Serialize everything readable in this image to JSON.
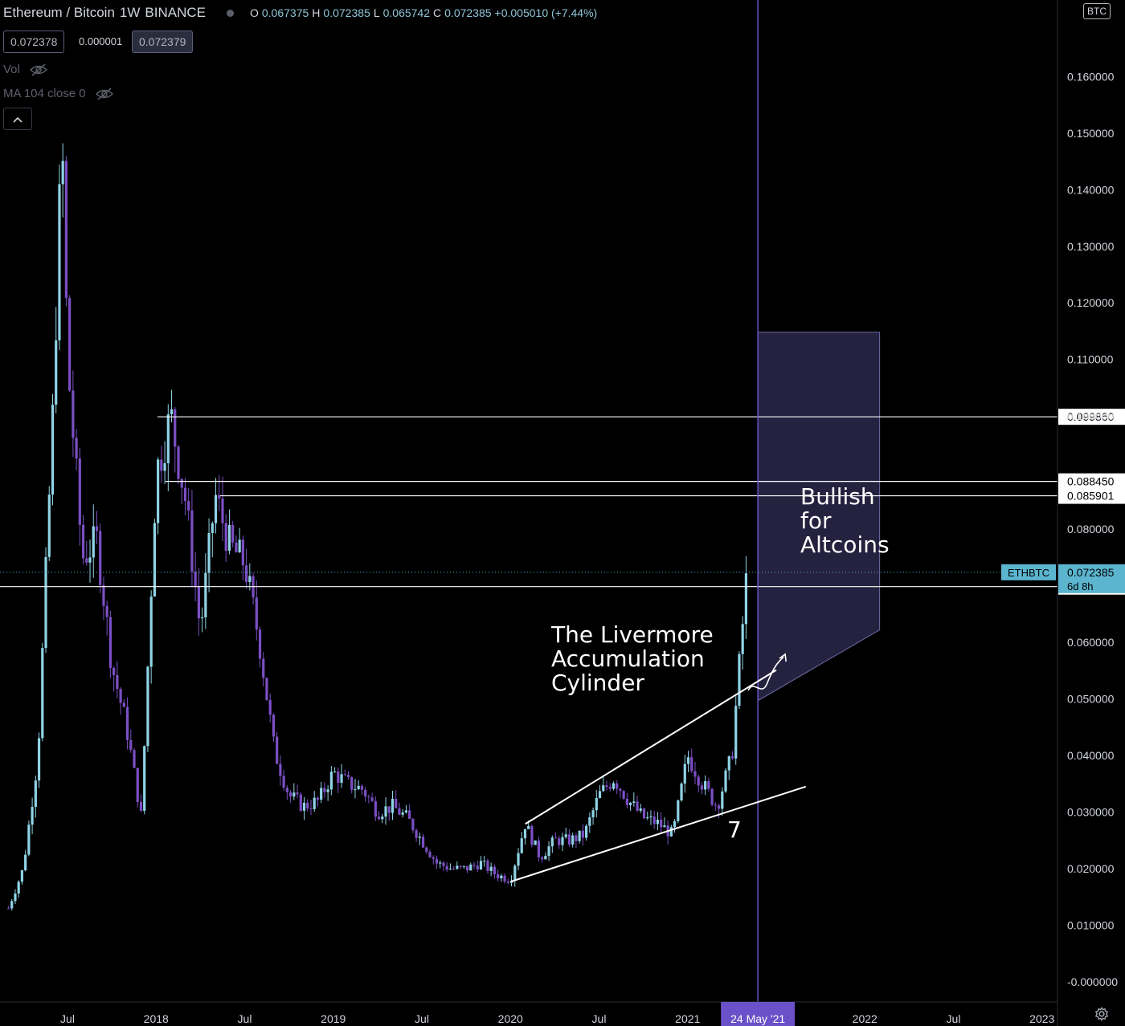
{
  "header": {
    "symbol": "Ethereum / Bitcoin",
    "interval": "1W",
    "exchange": "BINANCE",
    "ohlc": {
      "o_label": "O",
      "o": "0.067375",
      "h_label": "H",
      "h": "0.072385",
      "l_label": "L",
      "l": "0.065742",
      "c_label": "C",
      "c": "0.072385",
      "change": "+0.005010 (+7.44%)"
    },
    "bid": "0.072378",
    "spread": "0.000001",
    "ask": "0.072379"
  },
  "indicators": [
    {
      "label": "Vol"
    },
    {
      "label": "MA 104 close 0"
    }
  ],
  "currency_tag": "BTC",
  "colors": {
    "up": "#8fd3e6",
    "down": "#7b4fc4",
    "background": "#000000",
    "axis_text": "#d1d4dc",
    "box_fill": "#25223f",
    "box_stroke": "#6e6aa8",
    "cursor": "#6a51c9",
    "last_price_bg": "#5bb5cf"
  },
  "annotations": {
    "livermore": [
      "The Livermore",
      "Accumulation",
      "Cylinder"
    ],
    "bullish": [
      "Bullish",
      "for",
      "Altcoins"
    ],
    "seven": "7"
  },
  "chart_data": {
    "type": "candlestick",
    "title": "Ethereum / Bitcoin · 1W · BINANCE",
    "y_ticks": [
      "0.160000",
      "0.150000",
      "0.140000",
      "0.130000",
      "0.120000",
      "0.110000",
      "0.100000",
      "0.080000",
      "0.060000",
      "0.050000",
      "0.040000",
      "0.030000",
      "0.020000",
      "0.010000",
      "-0.000000"
    ],
    "x_ticks": [
      {
        "label": "Jul",
        "date": "2017-07"
      },
      {
        "label": "2018",
        "date": "2018-01"
      },
      {
        "label": "Jul",
        "date": "2018-07"
      },
      {
        "label": "2019",
        "date": "2019-01"
      },
      {
        "label": "Jul",
        "date": "2019-07"
      },
      {
        "label": "2020",
        "date": "2020-01"
      },
      {
        "label": "Jul",
        "date": "2020-07"
      },
      {
        "label": "2021",
        "date": "2021-01"
      },
      {
        "label": "2022",
        "date": "2022-01"
      },
      {
        "label": "Jul",
        "date": "2022-07"
      },
      {
        "label": "2023",
        "date": "2023-01"
      }
    ],
    "cursor_date_label": "24 May '21",
    "ylim": [
      0,
      0.16
    ],
    "xlim": [
      "2017-03",
      "2023-01"
    ],
    "horizontal_levels": [
      {
        "label": "0.099860",
        "value": 0.09986
      },
      {
        "label": "0.088450",
        "value": 0.08845
      },
      {
        "label": "0.085901",
        "value": 0.085901
      },
      {
        "label": "0.069848",
        "value": 0.069848
      }
    ],
    "last_price": {
      "symbol": "ETHBTC",
      "value": "0.072385",
      "countdown": "6d 8h"
    },
    "trendlines": [
      {
        "from": [
          "2020-01",
          "0.0177"
        ],
        "to": [
          "2021-09",
          "0.0345"
        ]
      },
      {
        "from": [
          "2020-02",
          "0.0279"
        ],
        "to": [
          "2021-07",
          "0.0551"
        ]
      }
    ],
    "target_box": {
      "date_start": "2021-05",
      "date_end": "2022-02",
      "top": 0.1148,
      "bottom_start": 0.0497,
      "bottom_end": 0.0622
    },
    "series_path": [
      [
        "2017-03",
        0.013
      ],
      [
        "2017-04",
        0.02
      ],
      [
        "2017-05",
        0.04
      ],
      [
        "2017-06",
        0.1
      ],
      [
        "2017-06-20",
        0.15
      ],
      [
        "2017-07",
        0.11
      ],
      [
        "2017-08",
        0.075
      ],
      [
        "2017-09",
        0.078
      ],
      [
        "2017-10",
        0.056
      ],
      [
        "2017-11",
        0.045
      ],
      [
        "2017-12",
        0.029
      ],
      [
        "2018-01",
        0.09
      ],
      [
        "2018-02",
        0.1
      ],
      [
        "2018-03",
        0.085
      ],
      [
        "2018-04",
        0.062
      ],
      [
        "2018-05",
        0.086
      ],
      [
        "2018-06",
        0.077
      ],
      [
        "2018-07",
        0.074
      ],
      [
        "2018-08",
        0.06
      ],
      [
        "2018-09",
        0.041
      ],
      [
        "2018-10",
        0.033
      ],
      [
        "2018-11",
        0.031
      ],
      [
        "2018-12",
        0.032
      ],
      [
        "2019-01",
        0.037
      ],
      [
        "2019-02",
        0.035
      ],
      [
        "2019-03",
        0.034
      ],
      [
        "2019-04",
        0.03
      ],
      [
        "2019-05",
        0.031
      ],
      [
        "2019-06",
        0.029
      ],
      [
        "2019-07",
        0.025
      ],
      [
        "2019-08",
        0.021
      ],
      [
        "2019-09",
        0.02
      ],
      [
        "2019-10",
        0.02
      ],
      [
        "2019-11",
        0.021
      ],
      [
        "2019-12",
        0.019
      ],
      [
        "2020-01",
        0.018
      ],
      [
        "2020-02",
        0.028
      ],
      [
        "2020-03",
        0.022
      ],
      [
        "2020-04",
        0.025
      ],
      [
        "2020-05",
        0.025
      ],
      [
        "2020-06",
        0.026
      ],
      [
        "2020-07",
        0.033
      ],
      [
        "2020-08",
        0.036
      ],
      [
        "2020-09",
        0.032
      ],
      [
        "2020-10",
        0.029
      ],
      [
        "2020-11",
        0.028
      ],
      [
        "2020-12",
        0.026
      ],
      [
        "2021-01",
        0.04
      ],
      [
        "2021-02",
        0.035
      ],
      [
        "2021-03",
        0.031
      ],
      [
        "2021-04",
        0.04
      ],
      [
        "2021-05",
        0.072
      ]
    ]
  }
}
